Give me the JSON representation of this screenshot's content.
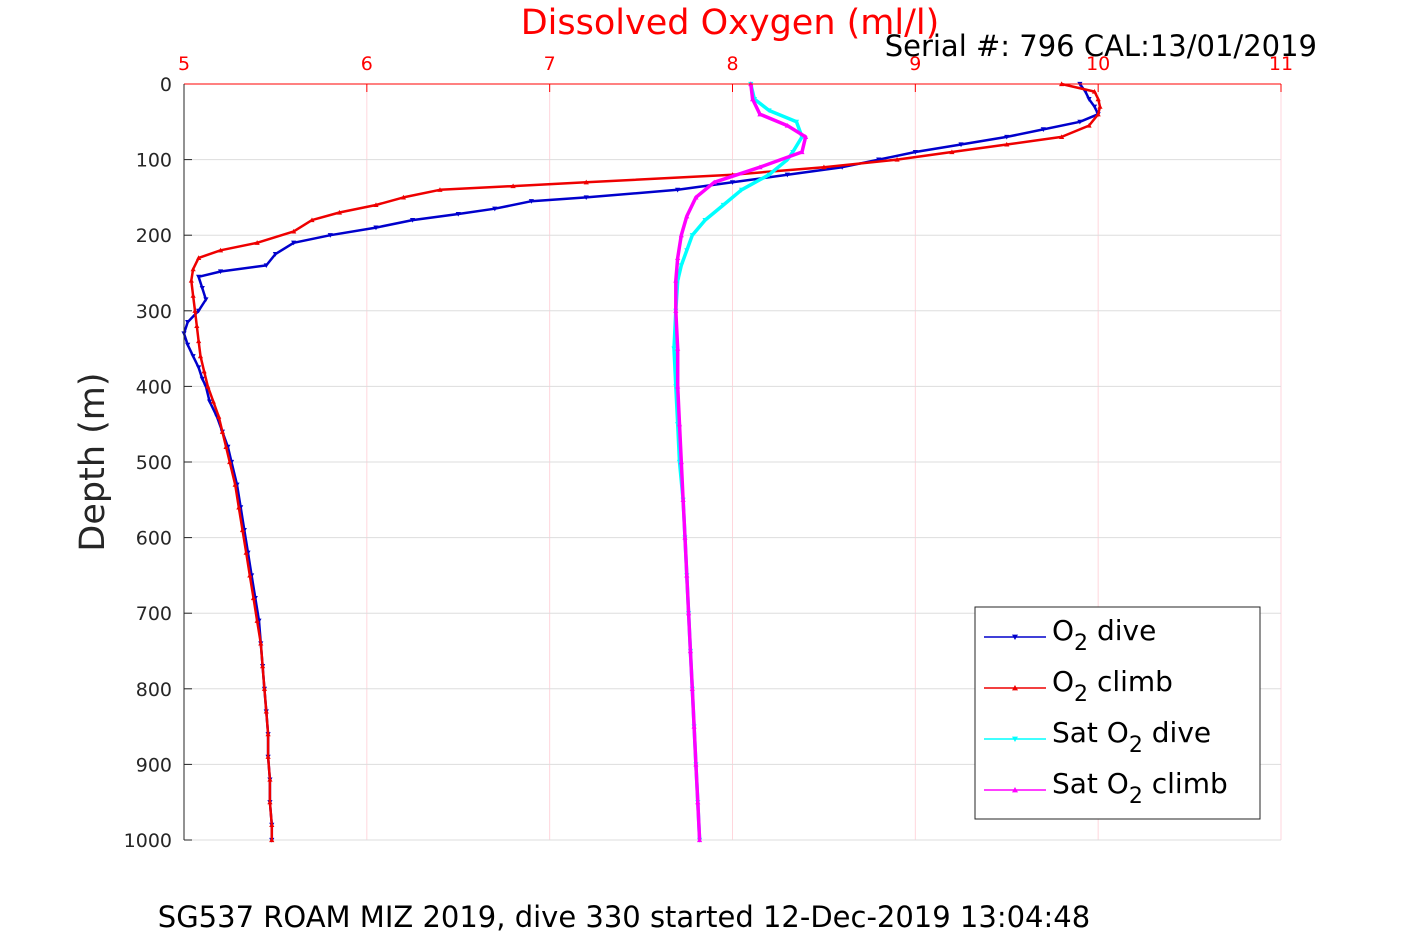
{
  "chart_data": {
    "type": "scatter",
    "title": "Dissolved Oxygen (ml/l)",
    "subtitle": "Serial #: 796  CAL:13/01/2019",
    "caption": "SG537 ROAM MIZ 2019, dive 330 started 12-Dec-2019 13:04:48",
    "xlabel": "",
    "ylabel": "Depth (m)",
    "xlim": [
      5,
      11
    ],
    "ylim": [
      0,
      1000
    ],
    "y_reversed": true,
    "x_axis_position": "top",
    "xticks": [
      "5",
      "6",
      "7",
      "8",
      "9",
      "10",
      "11"
    ],
    "yticks": [
      "0",
      "100",
      "200",
      "300",
      "400",
      "500",
      "600",
      "700",
      "800",
      "900",
      "1000"
    ],
    "grid": true,
    "legend_position": "bottom-right",
    "colors": {
      "title": "#ff0000",
      "x_tick": "#ff0000",
      "grid": "#dddddd"
    },
    "series": [
      {
        "name": "O₂ dive",
        "legend_label": {
          "pre": "O",
          "sub": "2",
          "post": " dive"
        },
        "color": "#0000cc",
        "marker": "triangle-down",
        "points": [
          [
            9.9,
            0
          ],
          [
            9.93,
            10
          ],
          [
            9.95,
            20
          ],
          [
            9.98,
            30
          ],
          [
            10.0,
            40
          ],
          [
            9.9,
            50
          ],
          [
            9.7,
            60
          ],
          [
            9.5,
            70
          ],
          [
            9.25,
            80
          ],
          [
            9.0,
            90
          ],
          [
            8.8,
            100
          ],
          [
            8.6,
            110
          ],
          [
            8.3,
            120
          ],
          [
            8.0,
            130
          ],
          [
            7.7,
            140
          ],
          [
            7.2,
            150
          ],
          [
            6.9,
            155
          ],
          [
            6.7,
            165
          ],
          [
            6.5,
            172
          ],
          [
            6.25,
            180
          ],
          [
            6.05,
            190
          ],
          [
            5.8,
            200
          ],
          [
            5.6,
            210
          ],
          [
            5.5,
            225
          ],
          [
            5.45,
            240
          ],
          [
            5.2,
            248
          ],
          [
            5.08,
            255
          ],
          [
            5.1,
            270
          ],
          [
            5.12,
            285
          ],
          [
            5.08,
            300
          ],
          [
            5.02,
            315
          ],
          [
            5.0,
            330
          ],
          [
            5.02,
            345
          ],
          [
            5.05,
            360
          ],
          [
            5.08,
            375
          ],
          [
            5.1,
            390
          ],
          [
            5.12,
            400
          ],
          [
            5.14,
            420
          ],
          [
            5.18,
            440
          ],
          [
            5.21,
            460
          ],
          [
            5.24,
            480
          ],
          [
            5.26,
            500
          ],
          [
            5.29,
            530
          ],
          [
            5.31,
            560
          ],
          [
            5.33,
            590
          ],
          [
            5.35,
            620
          ],
          [
            5.37,
            650
          ],
          [
            5.39,
            680
          ],
          [
            5.41,
            710
          ],
          [
            5.42,
            740
          ],
          [
            5.43,
            770
          ],
          [
            5.44,
            800
          ],
          [
            5.45,
            830
          ],
          [
            5.46,
            860
          ],
          [
            5.46,
            890
          ],
          [
            5.47,
            920
          ],
          [
            5.47,
            950
          ],
          [
            5.48,
            980
          ],
          [
            5.48,
            1000
          ]
        ]
      },
      {
        "name": "O₂ climb",
        "legend_label": {
          "pre": "O",
          "sub": "2",
          "post": " climb"
        },
        "color": "#ee0000",
        "marker": "triangle-up",
        "points": [
          [
            9.8,
            0
          ],
          [
            9.98,
            10
          ],
          [
            10.0,
            20
          ],
          [
            10.01,
            30
          ],
          [
            10.0,
            40
          ],
          [
            9.95,
            55
          ],
          [
            9.8,
            70
          ],
          [
            9.5,
            80
          ],
          [
            9.2,
            90
          ],
          [
            8.9,
            100
          ],
          [
            8.5,
            110
          ],
          [
            8.0,
            120
          ],
          [
            7.2,
            130
          ],
          [
            6.8,
            135
          ],
          [
            6.4,
            140
          ],
          [
            6.2,
            150
          ],
          [
            6.05,
            160
          ],
          [
            5.85,
            170
          ],
          [
            5.7,
            180
          ],
          [
            5.6,
            195
          ],
          [
            5.4,
            210
          ],
          [
            5.2,
            220
          ],
          [
            5.08,
            230
          ],
          [
            5.05,
            245
          ],
          [
            5.04,
            260
          ],
          [
            5.05,
            280
          ],
          [
            5.06,
            300
          ],
          [
            5.07,
            320
          ],
          [
            5.08,
            340
          ],
          [
            5.09,
            360
          ],
          [
            5.11,
            380
          ],
          [
            5.13,
            400
          ],
          [
            5.16,
            420
          ],
          [
            5.19,
            440
          ],
          [
            5.21,
            460
          ],
          [
            5.23,
            480
          ],
          [
            5.25,
            500
          ],
          [
            5.28,
            530
          ],
          [
            5.3,
            560
          ],
          [
            5.32,
            590
          ],
          [
            5.34,
            620
          ],
          [
            5.36,
            650
          ],
          [
            5.38,
            680
          ],
          [
            5.4,
            710
          ],
          [
            5.42,
            740
          ],
          [
            5.43,
            770
          ],
          [
            5.44,
            800
          ],
          [
            5.45,
            830
          ],
          [
            5.46,
            860
          ],
          [
            5.46,
            890
          ],
          [
            5.47,
            920
          ],
          [
            5.47,
            950
          ],
          [
            5.48,
            980
          ],
          [
            5.48,
            1000
          ]
        ]
      },
      {
        "name": "Sat O₂ dive",
        "legend_label": {
          "pre": "Sat O",
          "sub": "2",
          "post": " dive"
        },
        "color": "#00ffff",
        "marker": "triangle-down",
        "points": [
          [
            8.1,
            0
          ],
          [
            8.12,
            20
          ],
          [
            8.2,
            35
          ],
          [
            8.35,
            50
          ],
          [
            8.38,
            70
          ],
          [
            8.33,
            90
          ],
          [
            8.3,
            100
          ],
          [
            8.2,
            120
          ],
          [
            8.05,
            140
          ],
          [
            7.95,
            160
          ],
          [
            7.85,
            180
          ],
          [
            7.78,
            200
          ],
          [
            7.75,
            220
          ],
          [
            7.72,
            240
          ],
          [
            7.7,
            260
          ],
          [
            7.69,
            300
          ],
          [
            7.68,
            350
          ],
          [
            7.69,
            400
          ],
          [
            7.7,
            450
          ],
          [
            7.71,
            500
          ],
          [
            7.73,
            550
          ],
          [
            7.74,
            600
          ],
          [
            7.75,
            650
          ],
          [
            7.76,
            700
          ],
          [
            7.77,
            750
          ],
          [
            7.78,
            800
          ],
          [
            7.79,
            850
          ],
          [
            7.8,
            900
          ],
          [
            7.81,
            950
          ],
          [
            7.82,
            1000
          ]
        ]
      },
      {
        "name": "Sat O₂ climb",
        "legend_label": {
          "pre": "Sat O",
          "sub": "2",
          "post": " climb"
        },
        "color": "#ff00ff",
        "marker": "triangle-up",
        "points": [
          [
            8.1,
            0
          ],
          [
            8.11,
            20
          ],
          [
            8.15,
            40
          ],
          [
            8.3,
            55
          ],
          [
            8.4,
            70
          ],
          [
            8.38,
            90
          ],
          [
            8.15,
            110
          ],
          [
            7.9,
            130
          ],
          [
            7.8,
            150
          ],
          [
            7.75,
            175
          ],
          [
            7.72,
            200
          ],
          [
            7.7,
            230
          ],
          [
            7.69,
            260
          ],
          [
            7.69,
            300
          ],
          [
            7.7,
            350
          ],
          [
            7.7,
            400
          ],
          [
            7.71,
            450
          ],
          [
            7.72,
            500
          ],
          [
            7.73,
            550
          ],
          [
            7.74,
            600
          ],
          [
            7.75,
            650
          ],
          [
            7.76,
            700
          ],
          [
            7.77,
            750
          ],
          [
            7.78,
            800
          ],
          [
            7.79,
            850
          ],
          [
            7.8,
            900
          ],
          [
            7.81,
            950
          ],
          [
            7.82,
            1000
          ]
        ]
      }
    ]
  }
}
